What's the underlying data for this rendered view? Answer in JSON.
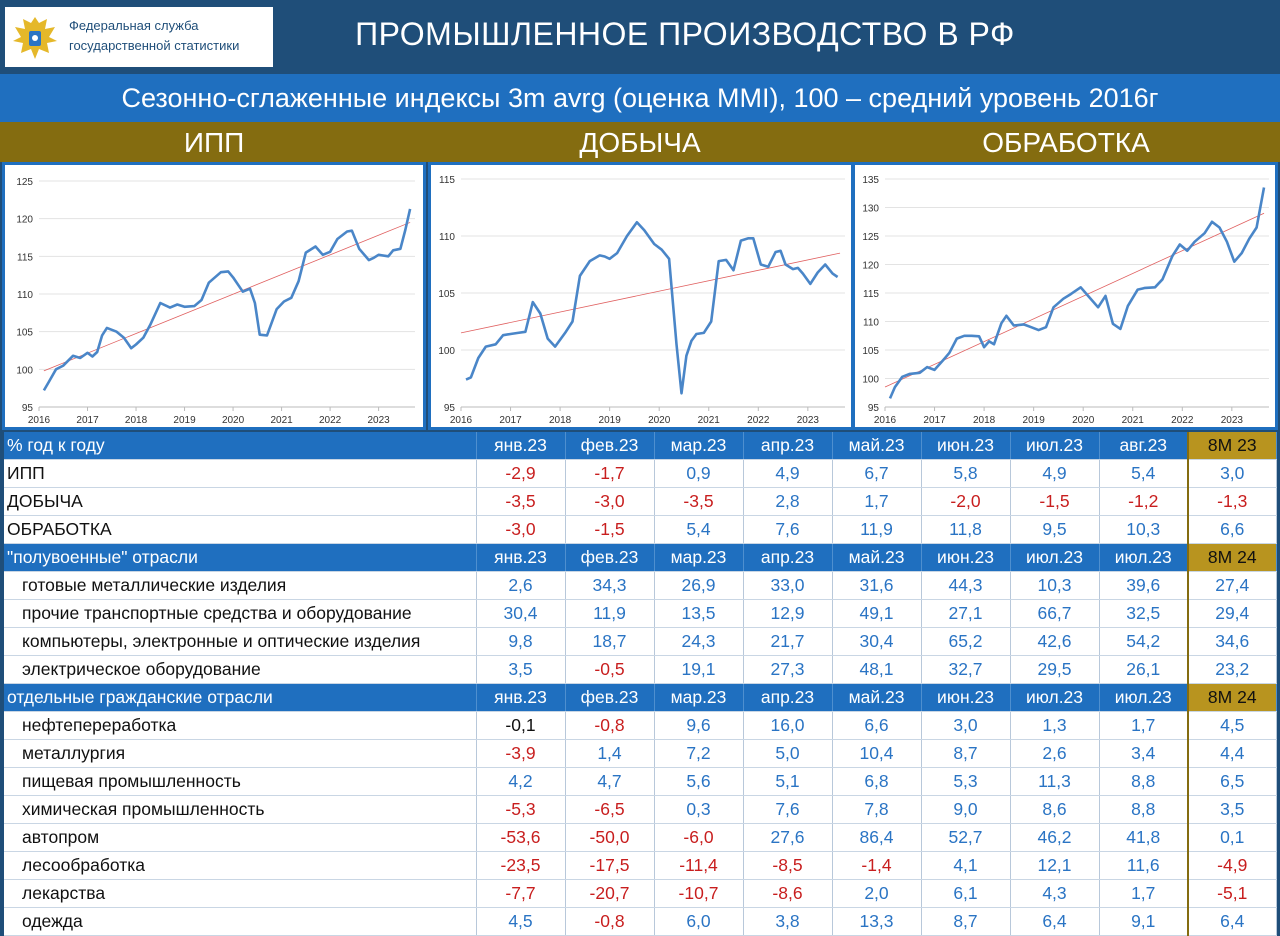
{
  "header": {
    "org_line1": "Федеральная служба",
    "org_line2": "государственной статистики",
    "title": "ПРОМЫШЛЕННОЕ ПРОИЗВОДСТВО В РФ",
    "subtitle": "Сезонно-сглаженные индексы 3m avrg (оценка MMI), 100 – средний уровень 2016г"
  },
  "colors": {
    "brand_blue": "#1f4e79",
    "bar_blue": "#1f6fbf",
    "gold": "#846c10",
    "line": "#4a86c8",
    "trend": "#e06060",
    "positive": "#2a74c4",
    "negative": "#c81e1e"
  },
  "sections": [
    "ИПП",
    "ДОБЫЧА",
    "ОБРАБОТКА"
  ],
  "chart_data": [
    {
      "type": "line",
      "title": "ИПП",
      "x_ticks": [
        "2016",
        "2017",
        "2018",
        "2019",
        "2020",
        "2021",
        "2022",
        "2023"
      ],
      "y_ticks": [
        "95",
        "100",
        "105",
        "110",
        "115",
        "120",
        "125"
      ],
      "xlim": [
        2016,
        2023.75
      ],
      "ylim": [
        95,
        125
      ],
      "trendline": [
        [
          2016.1,
          99.8
        ],
        [
          2023.65,
          119.5
        ]
      ],
      "series": [
        {
          "x": [
            2016.1,
            2016.2,
            2016.35,
            2016.5,
            2016.7,
            2016.85,
            2017.0,
            2017.1,
            2017.2,
            2017.3,
            2017.4,
            2017.6,
            2017.75,
            2017.9,
            2018.0,
            2018.15,
            2018.3,
            2018.5,
            2018.7,
            2018.85,
            2019.0,
            2019.2,
            2019.35,
            2019.5,
            2019.75,
            2019.9,
            2020.0,
            2020.2,
            2020.35,
            2020.45,
            2020.55,
            2020.7,
            2020.9,
            2021.05,
            2021.2,
            2021.35,
            2021.5,
            2021.7,
            2021.85,
            2022.0,
            2022.15,
            2022.35,
            2022.45,
            2022.6,
            2022.8,
            2022.9,
            2023.0,
            2023.2,
            2023.3,
            2023.45,
            2023.55,
            2023.65
          ],
          "y": [
            97.2,
            98.3,
            100.0,
            100.5,
            101.8,
            101.5,
            102.2,
            101.7,
            102.3,
            104.5,
            105.5,
            105.0,
            104.2,
            102.8,
            103.3,
            104.2,
            106.0,
            108.8,
            108.2,
            108.6,
            108.3,
            108.4,
            109.2,
            111.5,
            112.9,
            113.0,
            112.2,
            110.3,
            110.7,
            108.8,
            104.6,
            104.5,
            108.0,
            109.0,
            109.5,
            111.7,
            115.5,
            116.3,
            115.2,
            115.6,
            117.3,
            118.3,
            118.4,
            116.0,
            114.5,
            114.8,
            115.2,
            115.0,
            115.8,
            116.0,
            118.5,
            121.3
          ]
        }
      ]
    },
    {
      "type": "line",
      "title": "ДОБЫЧА",
      "x_ticks": [
        "2016",
        "2017",
        "2018",
        "2019",
        "2020",
        "2021",
        "2022",
        "2023"
      ],
      "y_ticks": [
        "95",
        "100",
        "105",
        "110",
        "115"
      ],
      "xlim": [
        2016,
        2023.75
      ],
      "ylim": [
        95,
        115
      ],
      "trendline": [
        [
          2016.0,
          101.5
        ],
        [
          2023.65,
          108.5
        ]
      ],
      "series": [
        {
          "x": [
            2016.1,
            2016.2,
            2016.35,
            2016.5,
            2016.7,
            2016.85,
            2017.0,
            2017.15,
            2017.3,
            2017.45,
            2017.6,
            2017.75,
            2017.9,
            2018.1,
            2018.25,
            2018.4,
            2018.6,
            2018.8,
            2018.9,
            2019.0,
            2019.15,
            2019.35,
            2019.55,
            2019.7,
            2019.9,
            2020.05,
            2020.2,
            2020.35,
            2020.45,
            2020.55,
            2020.65,
            2020.75,
            2020.9,
            2021.05,
            2021.2,
            2021.35,
            2021.5,
            2021.65,
            2021.8,
            2021.9,
            2022.05,
            2022.2,
            2022.35,
            2022.45,
            2022.55,
            2022.7,
            2022.8,
            2022.9,
            2023.05,
            2023.2,
            2023.35,
            2023.5,
            2023.6
          ],
          "y": [
            97.4,
            97.6,
            99.3,
            100.3,
            100.5,
            101.3,
            101.4,
            101.5,
            101.6,
            104.2,
            103.2,
            101.0,
            100.3,
            101.5,
            102.5,
            106.5,
            107.8,
            108.3,
            108.2,
            108.0,
            108.5,
            110.0,
            111.2,
            110.5,
            109.3,
            108.8,
            108.0,
            100.5,
            96.2,
            99.5,
            100.8,
            101.4,
            101.5,
            102.5,
            107.8,
            107.9,
            107.0,
            109.6,
            109.8,
            109.8,
            107.5,
            107.3,
            108.6,
            108.7,
            107.5,
            107.1,
            107.2,
            106.7,
            105.8,
            106.8,
            107.5,
            106.7,
            106.4
          ]
        }
      ]
    },
    {
      "type": "line",
      "title": "ОБРАБОТКА",
      "x_ticks": [
        "2016",
        "2017",
        "2018",
        "2019",
        "2020",
        "2021",
        "2022",
        "2023"
      ],
      "y_ticks": [
        "95",
        "100",
        "105",
        "110",
        "115",
        "120",
        "125",
        "130",
        "135"
      ],
      "xlim": [
        2016,
        2023.75
      ],
      "ylim": [
        95,
        135
      ],
      "trendline": [
        [
          2016.0,
          98.5
        ],
        [
          2023.65,
          129.0
        ]
      ],
      "series": [
        {
          "x": [
            2016.1,
            2016.2,
            2016.35,
            2016.5,
            2016.7,
            2016.85,
            2017.0,
            2017.1,
            2017.2,
            2017.3,
            2017.45,
            2017.6,
            2017.75,
            2017.9,
            2018.0,
            2018.1,
            2018.2,
            2018.35,
            2018.45,
            2018.6,
            2018.8,
            2018.95,
            2019.1,
            2019.25,
            2019.4,
            2019.6,
            2019.75,
            2019.95,
            2020.1,
            2020.3,
            2020.45,
            2020.6,
            2020.75,
            2020.9,
            2021.1,
            2021.25,
            2021.45,
            2021.6,
            2021.8,
            2021.95,
            2022.1,
            2022.25,
            2022.45,
            2022.6,
            2022.75,
            2022.9,
            2023.05,
            2023.2,
            2023.35,
            2023.5,
            2023.65
          ],
          "y": [
            96.5,
            98.5,
            100.3,
            100.8,
            101.0,
            102.0,
            101.5,
            102.5,
            103.5,
            104.5,
            107.0,
            107.5,
            107.5,
            107.4,
            105.5,
            106.5,
            106.0,
            109.7,
            111.0,
            109.3,
            109.5,
            109.0,
            108.5,
            109.0,
            112.5,
            114.0,
            114.8,
            116.0,
            114.5,
            112.5,
            114.5,
            109.6,
            108.7,
            112.7,
            115.6,
            115.9,
            116.0,
            117.4,
            121.5,
            123.5,
            122.4,
            124.0,
            125.5,
            127.5,
            126.5,
            124.0,
            120.5,
            122.0,
            124.5,
            126.5,
            133.5
          ]
        }
      ]
    }
  ],
  "table": {
    "sections": [
      {
        "header": "% год к году",
        "months": [
          "янв.23",
          "фев.23",
          "мар.23",
          "апр.23",
          "май.23",
          "июн.23",
          "июл.23",
          "авг.23"
        ],
        "summary": "8M 23",
        "rows": [
          {
            "label": "ИПП",
            "values": [
              "-2,9",
              "-1,7",
              "0,9",
              "4,9",
              "6,7",
              "5,8",
              "4,9",
              "5,4"
            ],
            "summary": "3,0"
          },
          {
            "label": "ДОБЫЧА",
            "values": [
              "-3,5",
              "-3,0",
              "-3,5",
              "2,8",
              "1,7",
              "-2,0",
              "-1,5",
              "-1,2"
            ],
            "summary": "-1,3"
          },
          {
            "label": "ОБРАБОТКА",
            "values": [
              "-3,0",
              "-1,5",
              "5,4",
              "7,6",
              "11,9",
              "11,8",
              "9,5",
              "10,3"
            ],
            "summary": "6,6"
          }
        ]
      },
      {
        "header": "\"полувоенные\" отрасли",
        "months": [
          "янв.23",
          "фев.23",
          "мар.23",
          "апр.23",
          "май.23",
          "июн.23",
          "июл.23",
          "июл.23"
        ],
        "summary": "8M 24",
        "rows": [
          {
            "label": "готовые металлические изделия",
            "values": [
              "2,6",
              "34,3",
              "26,9",
              "33,0",
              "31,6",
              "44,3",
              "10,3",
              "39,6"
            ],
            "summary": "27,4"
          },
          {
            "label": "прочие транспортные средства и оборудование",
            "values": [
              "30,4",
              "11,9",
              "13,5",
              "12,9",
              "49,1",
              "27,1",
              "66,7",
              "32,5"
            ],
            "summary": "29,4"
          },
          {
            "label": "компьютеры, электронные и оптические изделия",
            "values": [
              "9,8",
              "18,7",
              "24,3",
              "21,7",
              "30,4",
              "65,2",
              "42,6",
              "54,2"
            ],
            "summary": "34,6"
          },
          {
            "label": "электрическое оборудование",
            "values": [
              "3,5",
              "-0,5",
              "19,1",
              "27,3",
              "48,1",
              "32,7",
              "29,5",
              "26,1"
            ],
            "summary": "23,2"
          }
        ]
      },
      {
        "header": "отдельные гражданские отрасли",
        "months": [
          "янв.23",
          "фев.23",
          "мар.23",
          "апр.23",
          "май.23",
          "июн.23",
          "июл.23",
          "июл.23"
        ],
        "summary": "8M 24",
        "rows": [
          {
            "label": "нефтепереработка",
            "values": [
              "-0,1",
              "-0,8",
              "9,6",
              "16,0",
              "6,6",
              "3,0",
              "1,3",
              "1,7"
            ],
            "summary": "4,5"
          },
          {
            "label": "металлургия",
            "values": [
              "-3,9",
              "1,4",
              "7,2",
              "5,0",
              "10,4",
              "8,7",
              "2,6",
              "3,4"
            ],
            "summary": "4,4"
          },
          {
            "label": "пищевая промышленность",
            "values": [
              "4,2",
              "4,7",
              "5,6",
              "5,1",
              "6,8",
              "5,3",
              "11,3",
              "8,8"
            ],
            "summary": "6,5"
          },
          {
            "label": "химическая промышленность",
            "values": [
              "-5,3",
              "-6,5",
              "0,3",
              "7,6",
              "7,8",
              "9,0",
              "8,6",
              "8,8"
            ],
            "summary": "3,5"
          },
          {
            "label": "автопром",
            "values": [
              "-53,6",
              "-50,0",
              "-6,0",
              "27,6",
              "86,4",
              "52,7",
              "46,2",
              "41,8"
            ],
            "summary": "0,1"
          },
          {
            "label": "лесообработка",
            "values": [
              "-23,5",
              "-17,5",
              "-11,4",
              "-8,5",
              "-1,4",
              "4,1",
              "12,1",
              "11,6"
            ],
            "summary": "-4,9"
          },
          {
            "label": "лекарства",
            "values": [
              "-7,7",
              "-20,7",
              "-10,7",
              "-8,6",
              "2,0",
              "6,1",
              "4,3",
              "1,7"
            ],
            "summary": "-5,1"
          },
          {
            "label": "одежда",
            "values": [
              "4,5",
              "-0,8",
              "6,0",
              "3,8",
              "13,3",
              "8,7",
              "6,4",
              "9,1"
            ],
            "summary": "6,4"
          }
        ]
      }
    ]
  }
}
